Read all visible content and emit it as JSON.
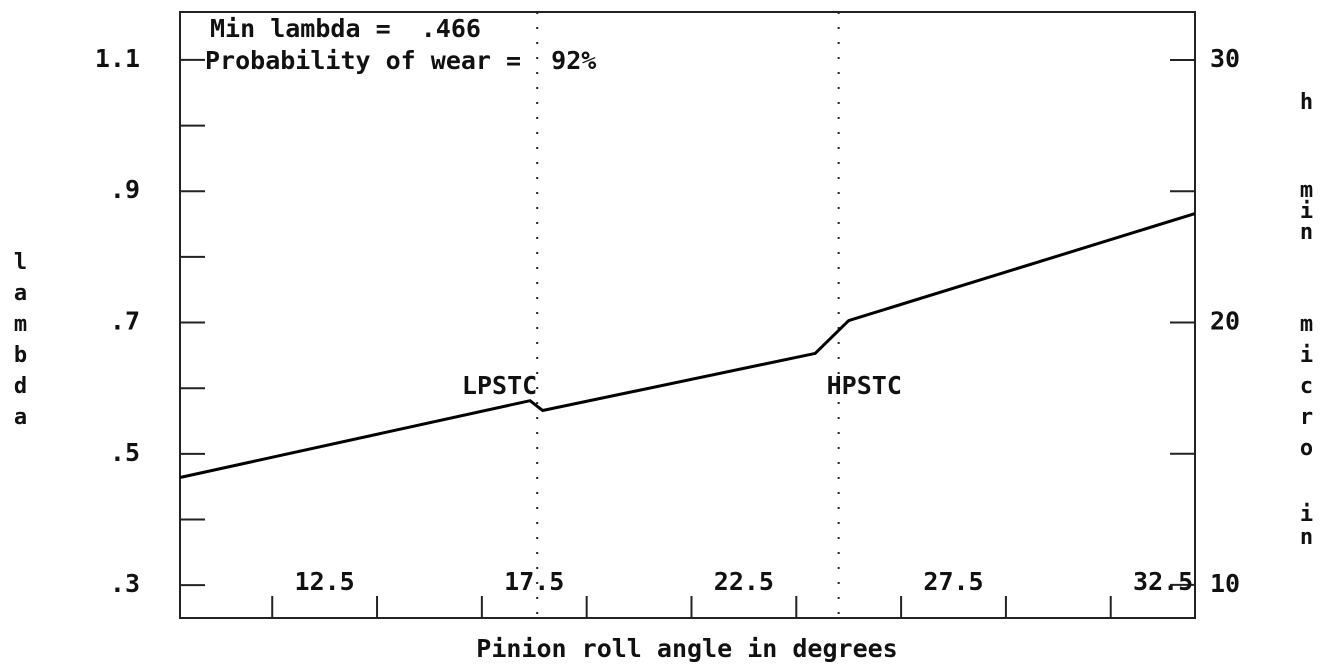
{
  "chart_data": {
    "type": "line",
    "annotations": [
      "Min lambda =  .466",
      "Probability of wear =  92%"
    ],
    "xlabel": "Pinion roll angle in degrees",
    "ylabel": "lambda",
    "y2label": [
      "h",
      "min",
      "micro",
      "in"
    ],
    "x": [
      9.05,
      17.4,
      17.7,
      24.2,
      25.0,
      33.26
    ],
    "series": [
      {
        "color": "#000000",
        "values": [
          0.464,
          0.581,
          0.566,
          0.653,
          0.703,
          0.866
        ]
      }
    ],
    "vlines": [
      {
        "x": 17.57,
        "label": "LPSTC"
      },
      {
        "x": 24.76,
        "label": "HPSTC"
      }
    ],
    "xlim": [
      9.05,
      33.26
    ],
    "xticks": [
      12.5,
      17.5,
      22.5,
      27.5,
      32.5
    ],
    "xticks_minor": [
      11.25,
      13.75,
      16.25,
      18.75,
      21.25,
      23.75,
      26.25,
      28.75,
      31.25
    ],
    "ylim": [
      0.25,
      1.173
    ],
    "yticks": [
      {
        "value": 0.3,
        "label": ".3"
      },
      {
        "value": 0.5,
        "label": ".5"
      },
      {
        "value": 0.7,
        "label": ".7"
      },
      {
        "value": 0.9,
        "label": ".9"
      },
      1.1
    ],
    "yticks_minor": [
      0.4,
      0.6,
      0.8,
      1.0
    ],
    "y2lim": [
      8.74,
      31.83
    ],
    "y2ticks": [
      10,
      20,
      30
    ],
    "y2ticks_minor": [
      15,
      25
    ]
  }
}
